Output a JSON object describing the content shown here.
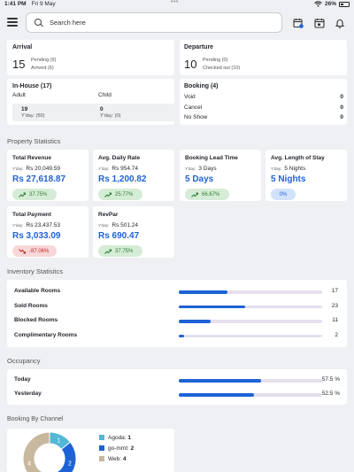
{
  "status_bar": {
    "time": "1:41 PM",
    "date": "Fri 9 May",
    "battery": "26%"
  },
  "search": {
    "placeholder": "Search here"
  },
  "arrival": {
    "title": "Arrival",
    "count": "15",
    "pending": "Pending (9)",
    "arrived": "Arrived (6)"
  },
  "departure": {
    "title": "Departure",
    "count": "10",
    "pending": "Pending (0)",
    "checked_out": "Checked out (10)"
  },
  "in_house": {
    "title": "In-House (17)",
    "adult_label": "Adult",
    "child_label": "Child",
    "adult_value": "19",
    "adult_yday": "Y'day: (50)",
    "child_value": "0",
    "child_yday": "Y'day: (0)"
  },
  "booking": {
    "title": "Booking (4)",
    "rows": [
      {
        "label": "Void",
        "value": "0"
      },
      {
        "label": "Cancel",
        "value": "0"
      },
      {
        "label": "No Show",
        "value": "0"
      }
    ]
  },
  "property_stats": {
    "title": "Property Statistics",
    "yday_label": "Y'day:",
    "cards": [
      {
        "title": "Total Revenue",
        "yday": "Rs 20,049.59",
        "value": "Rs 27,618.87",
        "change": "37.75%",
        "trend": "up"
      },
      {
        "title": "Avg. Daily Rate",
        "yday": "Rs 954.74",
        "value": "Rs 1,200.82",
        "change": "25.77%",
        "trend": "up"
      },
      {
        "title": "Booking Lead Time",
        "yday": "3 Days",
        "value": "5 Days",
        "change": "66.67%",
        "trend": "up"
      },
      {
        "title": "Avg. Length of Stay",
        "yday": "5 Nights",
        "value": "5 Nights",
        "change": "0%",
        "trend": "flat"
      },
      {
        "title": "Total Payment",
        "yday": "Rs 23,437.53",
        "value": "Rs 3,033.09",
        "change": "-87.06%",
        "trend": "down"
      },
      {
        "title": "RevPar",
        "yday": "Rs 501.24",
        "value": "Rs 690.47",
        "change": "37.75%",
        "trend": "up"
      }
    ]
  },
  "inventory": {
    "title": "Inventory Statisitcs",
    "rows": [
      {
        "label": "Available Rooms",
        "value": 17,
        "display": "17"
      },
      {
        "label": "Sold Rooms",
        "value": 23,
        "display": "23"
      },
      {
        "label": "Blocked Rooms",
        "value": 11,
        "display": "11"
      },
      {
        "label": "Complimentary Rooms",
        "value": 2,
        "display": "2"
      }
    ]
  },
  "occupancy": {
    "title": "Occupancy",
    "rows": [
      {
        "label": "Today",
        "value": 57.5,
        "display": "57.5 %"
      },
      {
        "label": "Yesterday",
        "value": 52.5,
        "display": "52.5 %"
      }
    ]
  },
  "channel": {
    "title": "Booking By Channel",
    "items": [
      {
        "name": "Agoda",
        "value": 1,
        "color": "#52b8d6"
      },
      {
        "name": "go-mmt",
        "value": 2,
        "color": "#1e62d6"
      },
      {
        "name": "Web",
        "value": 4,
        "color": "#c8b89e"
      }
    ]
  },
  "colors": {
    "accent": "#1e62d6",
    "green": "#2e7d32",
    "red": "#c62828"
  }
}
